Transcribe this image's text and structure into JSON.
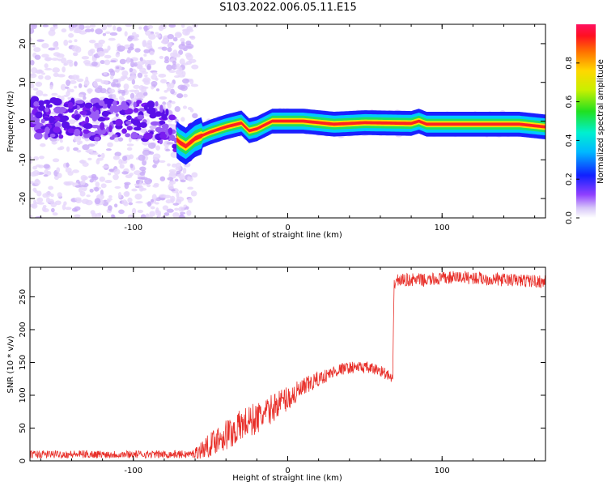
{
  "title": "S103.2022.006.05.11.E15",
  "chart_data": [
    {
      "type": "heatmap",
      "title": "S103.2022.006.05.11.E15",
      "xlabel": "Height of straight line (km)",
      "ylabel": "Frequency (Hz)",
      "xlim": [
        -167,
        167
      ],
      "ylim": [
        -25,
        25
      ],
      "xticks": [
        -100,
        0,
        100
      ],
      "yticks": [
        -20,
        -10,
        0,
        10,
        20
      ],
      "grid": false,
      "colorbar": {
        "label": "Normalized spectral amplitude",
        "range": [
          0,
          1
        ],
        "ticks": [
          "0.0",
          "0.2",
          "0.4",
          "0.6",
          "0.8"
        ],
        "colormap": "rainbow"
      },
      "ridge": {
        "description_points": [
          {
            "x": -170,
            "y": 0.8
          },
          {
            "x": -140,
            "y": 0.5
          },
          {
            "x": -110,
            "y": 0.2
          },
          {
            "x": -85,
            "y": 0.3
          },
          {
            "x": -70,
            "y": -5.5
          },
          {
            "x": -66,
            "y": -6.5
          },
          {
            "x": -60,
            "y": -4.5
          },
          {
            "x": -50,
            "y": -2.8
          },
          {
            "x": -40,
            "y": -1.5
          },
          {
            "x": -30,
            "y": -0.5
          },
          {
            "x": -25,
            "y": -2.5
          },
          {
            "x": -20,
            "y": -2.0
          },
          {
            "x": -10,
            "y": 0.0
          },
          {
            "x": 0,
            "y": 0.0
          },
          {
            "x": 10,
            "y": 0.0
          },
          {
            "x": 20,
            "y": -0.4
          },
          {
            "x": 30,
            "y": -0.8
          },
          {
            "x": 50,
            "y": -0.4
          },
          {
            "x": 80,
            "y": -0.6
          },
          {
            "x": 85,
            "y": 0.0
          },
          {
            "x": 90,
            "y": -0.8
          },
          {
            "x": 120,
            "y": -0.8
          },
          {
            "x": 150,
            "y": -0.8
          },
          {
            "x": 167,
            "y": -1.5
          }
        ]
      }
    },
    {
      "type": "line",
      "xlabel": "Height of straight line (km)",
      "ylabel": "SNR (10 * v/v)",
      "xlim": [
        -167,
        167
      ],
      "ylim": [
        0,
        295
      ],
      "xticks": [
        -100,
        0,
        100
      ],
      "yticks": [
        0,
        50,
        100,
        150,
        200,
        250
      ],
      "grid": false,
      "series": [
        {
          "color": "#e8302a",
          "x": [
            -167,
            -150,
            -120,
            -100,
            -80,
            -62,
            -55,
            -50,
            -45,
            -40,
            -35,
            -30,
            -25,
            -20,
            -15,
            -10,
            -5,
            0,
            5,
            10,
            15,
            20,
            25,
            30,
            35,
            40,
            45,
            50,
            55,
            60,
            65,
            68,
            69,
            70,
            80,
            90,
            100,
            110,
            120,
            130,
            140,
            150,
            160,
            167
          ],
          "values": [
            10,
            10,
            10,
            10,
            10,
            10,
            18,
            25,
            35,
            40,
            45,
            55,
            60,
            65,
            70,
            80,
            90,
            95,
            102,
            110,
            118,
            125,
            130,
            136,
            140,
            142,
            143,
            142,
            140,
            138,
            130,
            122,
            270,
            275,
            276,
            275,
            278,
            280,
            279,
            277,
            276,
            275,
            274,
            273
          ],
          "noise": [
            6,
            6,
            6,
            6,
            6,
            6,
            15,
            18,
            22,
            25,
            25,
            25,
            25,
            25,
            22,
            22,
            20,
            20,
            18,
            16,
            14,
            12,
            10,
            10,
            9,
            9,
            9,
            9,
            9,
            9,
            9,
            9,
            10,
            10,
            10,
            10,
            10,
            10,
            10,
            10,
            10,
            10,
            10,
            10
          ]
        }
      ]
    }
  ]
}
